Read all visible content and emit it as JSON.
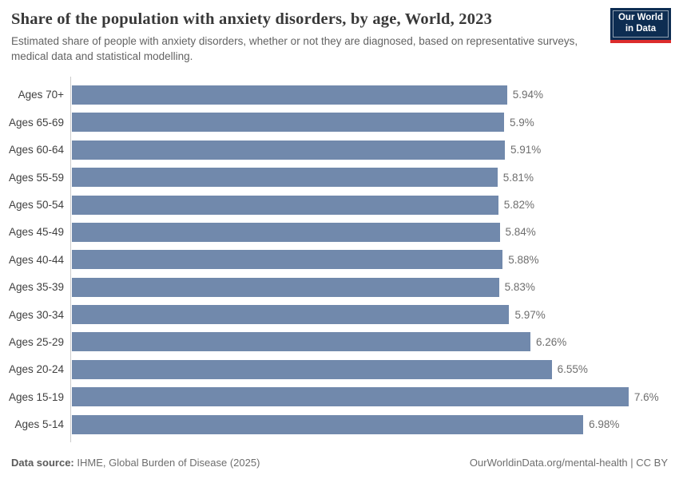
{
  "header": {
    "title": "Share of the population with anxiety disorders, by age, World, 2023",
    "subtitle": "Estimated share of people with anxiety disorders, whether or not they are diagnosed, based on representative surveys, medical data and statistical modelling.",
    "logo": {
      "line1": "Our World",
      "line2": "in Data"
    }
  },
  "chart_data": {
    "type": "bar",
    "orientation": "horizontal",
    "title": "Share of the population with anxiety disorders, by age, World, 2023",
    "xlabel": "",
    "ylabel": "",
    "grid": false,
    "legend": "none",
    "xlim": [
      0,
      8.3
    ],
    "bar_color": "#7189ac",
    "categories": [
      "Ages 70+",
      "Ages 65-69",
      "Ages 60-64",
      "Ages 55-59",
      "Ages 50-54",
      "Ages 45-49",
      "Ages 40-44",
      "Ages 35-39",
      "Ages 30-34",
      "Ages 25-29",
      "Ages 20-24",
      "Ages 15-19",
      "Ages 5-14"
    ],
    "values": [
      5.94,
      5.9,
      5.91,
      5.81,
      5.82,
      5.84,
      5.88,
      5.83,
      5.97,
      6.26,
      6.55,
      7.6,
      6.98
    ],
    "value_labels": [
      "5.94%",
      "5.9%",
      "5.91%",
      "5.81%",
      "5.82%",
      "5.84%",
      "5.88%",
      "5.83%",
      "5.97%",
      "6.26%",
      "6.55%",
      "7.6%",
      "6.98%"
    ]
  },
  "footer": {
    "source_label": "Data source:",
    "source_text": "IHME, Global Burden of Disease (2025)",
    "credit": "OurWorldinData.org/mental-health | CC BY"
  },
  "colors": {
    "bar": "#7189ac",
    "axis_line": "#cccccc",
    "title_text": "#383838",
    "subtitle_text": "#636363",
    "category_label": "#404040",
    "value_label": "#6e6e6e",
    "logo_navy": "#0d2d52",
    "logo_red": "#dc2c2c",
    "background": "#ffffff"
  }
}
